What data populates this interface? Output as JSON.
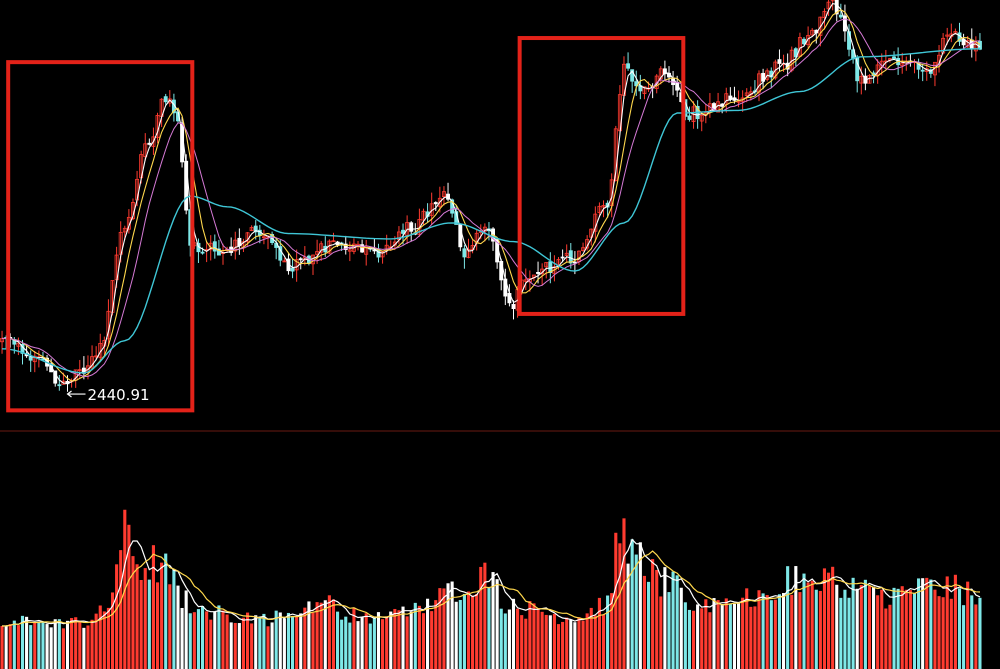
{
  "chart_data": [
    {
      "type": "candlestick",
      "title": "",
      "panel": "price",
      "x_count": 240,
      "ylim": [
        2400,
        3800
      ],
      "grid": false,
      "legend": "none",
      "colors": {
        "up": "#ff3b30",
        "down": "#7ee8e8",
        "ma_short": "#ffffff",
        "ma_mid": "#ffd84d",
        "ma_long": "#d67ad6",
        "ma_slow": "#3fc6d6",
        "highlight_box": "#e32219"
      },
      "price_path": [
        {
          "x": 0,
          "y": 2640
        },
        {
          "x": 10,
          "y": 2560
        },
        {
          "x": 15,
          "y": 2470
        },
        {
          "x": 20,
          "y": 2530
        },
        {
          "x": 24,
          "y": 2610
        },
        {
          "x": 30,
          "y": 3080
        },
        {
          "x": 36,
          "y": 3400
        },
        {
          "x": 40,
          "y": 3540
        },
        {
          "x": 43,
          "y": 3450
        },
        {
          "x": 46,
          "y": 3000
        },
        {
          "x": 55,
          "y": 2980
        },
        {
          "x": 62,
          "y": 3060
        },
        {
          "x": 70,
          "y": 2920
        },
        {
          "x": 82,
          "y": 3010
        },
        {
          "x": 92,
          "y": 2960
        },
        {
          "x": 100,
          "y": 3060
        },
        {
          "x": 108,
          "y": 3180
        },
        {
          "x": 114,
          "y": 2960
        },
        {
          "x": 118,
          "y": 3090
        },
        {
          "x": 124,
          "y": 2760
        },
        {
          "x": 128,
          "y": 2880
        },
        {
          "x": 140,
          "y": 2950
        },
        {
          "x": 148,
          "y": 3160
        },
        {
          "x": 152,
          "y": 3660
        },
        {
          "x": 156,
          "y": 3560
        },
        {
          "x": 162,
          "y": 3650
        },
        {
          "x": 168,
          "y": 3490
        },
        {
          "x": 180,
          "y": 3560
        },
        {
          "x": 190,
          "y": 3660
        },
        {
          "x": 198,
          "y": 3790
        },
        {
          "x": 203,
          "y": 3900
        },
        {
          "x": 210,
          "y": 3620
        },
        {
          "x": 218,
          "y": 3700
        },
        {
          "x": 226,
          "y": 3640
        },
        {
          "x": 232,
          "y": 3790
        },
        {
          "x": 239,
          "y": 3740
        }
      ],
      "ma_long_path": [
        {
          "x": 0,
          "y": 2610
        },
        {
          "x": 20,
          "y": 2520
        },
        {
          "x": 30,
          "y": 2640
        },
        {
          "x": 46,
          "y": 3180
        },
        {
          "x": 55,
          "y": 3140
        },
        {
          "x": 70,
          "y": 3040
        },
        {
          "x": 95,
          "y": 3020
        },
        {
          "x": 110,
          "y": 3080
        },
        {
          "x": 125,
          "y": 3010
        },
        {
          "x": 140,
          "y": 2900
        },
        {
          "x": 152,
          "y": 3080
        },
        {
          "x": 165,
          "y": 3490
        },
        {
          "x": 180,
          "y": 3500
        },
        {
          "x": 195,
          "y": 3570
        },
        {
          "x": 210,
          "y": 3700
        },
        {
          "x": 239,
          "y": 3730
        }
      ],
      "boxes": [
        {
          "x_start": 2,
          "x_end": 46,
          "y_low": 2380,
          "y_high": 3680
        },
        {
          "x_start": 127,
          "x_end": 166,
          "y_low": 2740,
          "y_high": 3770
        }
      ],
      "annotations": [
        {
          "text": "2440.91",
          "x": 16,
          "y": 2440.91,
          "arrow": "left"
        }
      ]
    },
    {
      "type": "bar",
      "panel": "volume",
      "x_count": 240,
      "ylim": [
        0,
        120
      ],
      "grid": false,
      "volume_path": [
        {
          "x": 0,
          "y": 22
        },
        {
          "x": 20,
          "y": 22
        },
        {
          "x": 25,
          "y": 30
        },
        {
          "x": 30,
          "y": 95
        },
        {
          "x": 34,
          "y": 70
        },
        {
          "x": 38,
          "y": 72
        },
        {
          "x": 46,
          "y": 38
        },
        {
          "x": 55,
          "y": 28
        },
        {
          "x": 65,
          "y": 25
        },
        {
          "x": 78,
          "y": 38
        },
        {
          "x": 90,
          "y": 24
        },
        {
          "x": 100,
          "y": 32
        },
        {
          "x": 118,
          "y": 62
        },
        {
          "x": 125,
          "y": 34
        },
        {
          "x": 140,
          "y": 26
        },
        {
          "x": 148,
          "y": 38
        },
        {
          "x": 151,
          "y": 100
        },
        {
          "x": 155,
          "y": 78
        },
        {
          "x": 162,
          "y": 55
        },
        {
          "x": 170,
          "y": 38
        },
        {
          "x": 180,
          "y": 40
        },
        {
          "x": 195,
          "y": 60
        },
        {
          "x": 205,
          "y": 58
        },
        {
          "x": 215,
          "y": 45
        },
        {
          "x": 225,
          "y": 52
        },
        {
          "x": 239,
          "y": 48
        }
      ]
    }
  ]
}
